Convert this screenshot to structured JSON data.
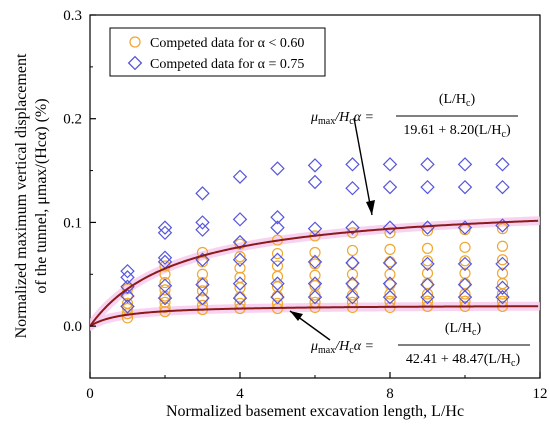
{
  "chart_data": {
    "type": "scatter",
    "xlabel": "Normalized basement excavation length, L/Hc",
    "ylabel_line1": "Normalized maximum vertical displacement",
    "ylabel_line2": "of the tunnel, μmax/(Hcα) (%)",
    "xlim": [
      0,
      12
    ],
    "ylim": [
      -0.05,
      0.3
    ],
    "x_ticks": [
      "0",
      "4",
      "8",
      "12"
    ],
    "y_ticks": [
      "0.0",
      "0.1",
      "0.2",
      "0.3"
    ],
    "legend_placement": "top-left",
    "legend": [
      {
        "label": "Competed data for α < 0.60",
        "marker": "circle",
        "color": "#f0a830"
      },
      {
        "label": "Competed data for α = 0.75",
        "marker": "diamond",
        "color": "#5555dd"
      }
    ],
    "series": [
      {
        "name": "Competed data for α < 0.60",
        "marker": "circle",
        "color": "#f0a830",
        "points": [
          [
            1,
            0.008
          ],
          [
            1,
            0.012
          ],
          [
            1,
            0.017
          ],
          [
            1,
            0.022
          ],
          [
            1,
            0.03
          ],
          [
            1,
            0.036
          ],
          [
            2,
            0.014
          ],
          [
            2,
            0.018
          ],
          [
            2,
            0.023
          ],
          [
            2,
            0.029
          ],
          [
            2,
            0.035
          ],
          [
            2,
            0.042
          ],
          [
            2,
            0.05
          ],
          [
            2,
            0.058
          ],
          [
            3,
            0.016
          ],
          [
            3,
            0.02
          ],
          [
            3,
            0.026
          ],
          [
            3,
            0.034
          ],
          [
            3,
            0.042
          ],
          [
            3,
            0.05
          ],
          [
            3,
            0.062
          ],
          [
            3,
            0.071
          ],
          [
            4,
            0.017
          ],
          [
            4,
            0.022
          ],
          [
            4,
            0.028
          ],
          [
            4,
            0.037
          ],
          [
            4,
            0.047
          ],
          [
            4,
            0.056
          ],
          [
            4,
            0.067
          ],
          [
            4,
            0.079
          ],
          [
            5,
            0.017
          ],
          [
            5,
            0.022
          ],
          [
            5,
            0.029
          ],
          [
            5,
            0.038
          ],
          [
            5,
            0.048
          ],
          [
            5,
            0.058
          ],
          [
            5,
            0.07
          ],
          [
            5,
            0.083
          ],
          [
            6,
            0.018
          ],
          [
            6,
            0.023
          ],
          [
            6,
            0.03
          ],
          [
            6,
            0.039
          ],
          [
            6,
            0.049
          ],
          [
            6,
            0.06
          ],
          [
            6,
            0.071
          ],
          [
            6,
            0.087
          ],
          [
            7,
            0.018
          ],
          [
            7,
            0.023
          ],
          [
            7,
            0.03
          ],
          [
            7,
            0.04
          ],
          [
            7,
            0.05
          ],
          [
            7,
            0.061
          ],
          [
            7,
            0.073
          ],
          [
            7,
            0.09
          ],
          [
            8,
            0.018
          ],
          [
            8,
            0.024
          ],
          [
            8,
            0.031
          ],
          [
            8,
            0.04
          ],
          [
            8,
            0.05
          ],
          [
            8,
            0.062
          ],
          [
            8,
            0.074
          ],
          [
            8,
            0.09
          ],
          [
            9,
            0.019
          ],
          [
            9,
            0.024
          ],
          [
            9,
            0.031
          ],
          [
            9,
            0.041
          ],
          [
            9,
            0.051
          ],
          [
            9,
            0.063
          ],
          [
            9,
            0.075
          ],
          [
            9,
            0.092
          ],
          [
            10,
            0.019
          ],
          [
            10,
            0.024
          ],
          [
            10,
            0.031
          ],
          [
            10,
            0.041
          ],
          [
            10,
            0.051
          ],
          [
            10,
            0.063
          ],
          [
            10,
            0.076
          ],
          [
            10,
            0.093
          ],
          [
            11,
            0.019
          ],
          [
            11,
            0.024
          ],
          [
            11,
            0.031
          ],
          [
            11,
            0.041
          ],
          [
            11,
            0.051
          ],
          [
            11,
            0.064
          ],
          [
            11,
            0.077
          ],
          [
            11,
            0.094
          ]
        ]
      },
      {
        "name": "Competed data for α = 0.75",
        "marker": "diamond",
        "color": "#5555dd",
        "points": [
          [
            1,
            0.019
          ],
          [
            1,
            0.029
          ],
          [
            1,
            0.038
          ],
          [
            1,
            0.047
          ],
          [
            1,
            0.053
          ],
          [
            2,
            0.027
          ],
          [
            2,
            0.039
          ],
          [
            2,
            0.062
          ],
          [
            2,
            0.066
          ],
          [
            2,
            0.09
          ],
          [
            2,
            0.095
          ],
          [
            3,
            0.027
          ],
          [
            3,
            0.04
          ],
          [
            3,
            0.064
          ],
          [
            3,
            0.093
          ],
          [
            3,
            0.1
          ],
          [
            3,
            0.128
          ],
          [
            4,
            0.027
          ],
          [
            4,
            0.041
          ],
          [
            4,
            0.064
          ],
          [
            4,
            0.081
          ],
          [
            4,
            0.103
          ],
          [
            4,
            0.144
          ],
          [
            5,
            0.028
          ],
          [
            5,
            0.041
          ],
          [
            5,
            0.064
          ],
          [
            5,
            0.095
          ],
          [
            5,
            0.105
          ],
          [
            5,
            0.152
          ],
          [
            6,
            0.028
          ],
          [
            6,
            0.041
          ],
          [
            6,
            0.062
          ],
          [
            6,
            0.094
          ],
          [
            6,
            0.139
          ],
          [
            6,
            0.155
          ],
          [
            7,
            0.028
          ],
          [
            7,
            0.041
          ],
          [
            7,
            0.061
          ],
          [
            7,
            0.095
          ],
          [
            7,
            0.133
          ],
          [
            7,
            0.156
          ],
          [
            8,
            0.028
          ],
          [
            8,
            0.041
          ],
          [
            8,
            0.061
          ],
          [
            8,
            0.095
          ],
          [
            8,
            0.134
          ],
          [
            8,
            0.156
          ],
          [
            9,
            0.028
          ],
          [
            9,
            0.04
          ],
          [
            9,
            0.06
          ],
          [
            9,
            0.095
          ],
          [
            9,
            0.134
          ],
          [
            9,
            0.156
          ],
          [
            10,
            0.028
          ],
          [
            10,
            0.04
          ],
          [
            10,
            0.06
          ],
          [
            10,
            0.095
          ],
          [
            10,
            0.134
          ],
          [
            10,
            0.156
          ],
          [
            11,
            0.028
          ],
          [
            11,
            0.037
          ],
          [
            11,
            0.06
          ],
          [
            11,
            0.097
          ],
          [
            11,
            0.134
          ],
          [
            11,
            0.156
          ]
        ]
      }
    ],
    "fit_curves": [
      {
        "a": 19.61,
        "b": 8.2,
        "color": "#8b1a1a",
        "band_color": "#f6c8ee"
      },
      {
        "a": 42.41,
        "b": 48.47,
        "color": "#8b1a1a",
        "band_color": "#f6c8ee"
      }
    ]
  },
  "equations": {
    "upper": {
      "lhs_var": "μ",
      "lhs_sub": "max",
      "lhs_rest": "/H",
      "lhs_sub2": "c",
      "lhs_tail": "α =",
      "num": "(L/H",
      "num_sub": "c",
      "num_close": ")",
      "den": "19.61 + 8.20(L/H",
      "den_sub": "c",
      "den_close": ")"
    },
    "lower": {
      "lhs_var": "μ",
      "lhs_sub": "max",
      "lhs_rest": "/H",
      "lhs_sub2": "c",
      "lhs_tail": "α =",
      "num": "(L/H",
      "num_sub": "c",
      "num_close": ")",
      "den": "42.41 + 48.47(L/H",
      "den_sub": "c",
      "den_close": ")"
    }
  }
}
